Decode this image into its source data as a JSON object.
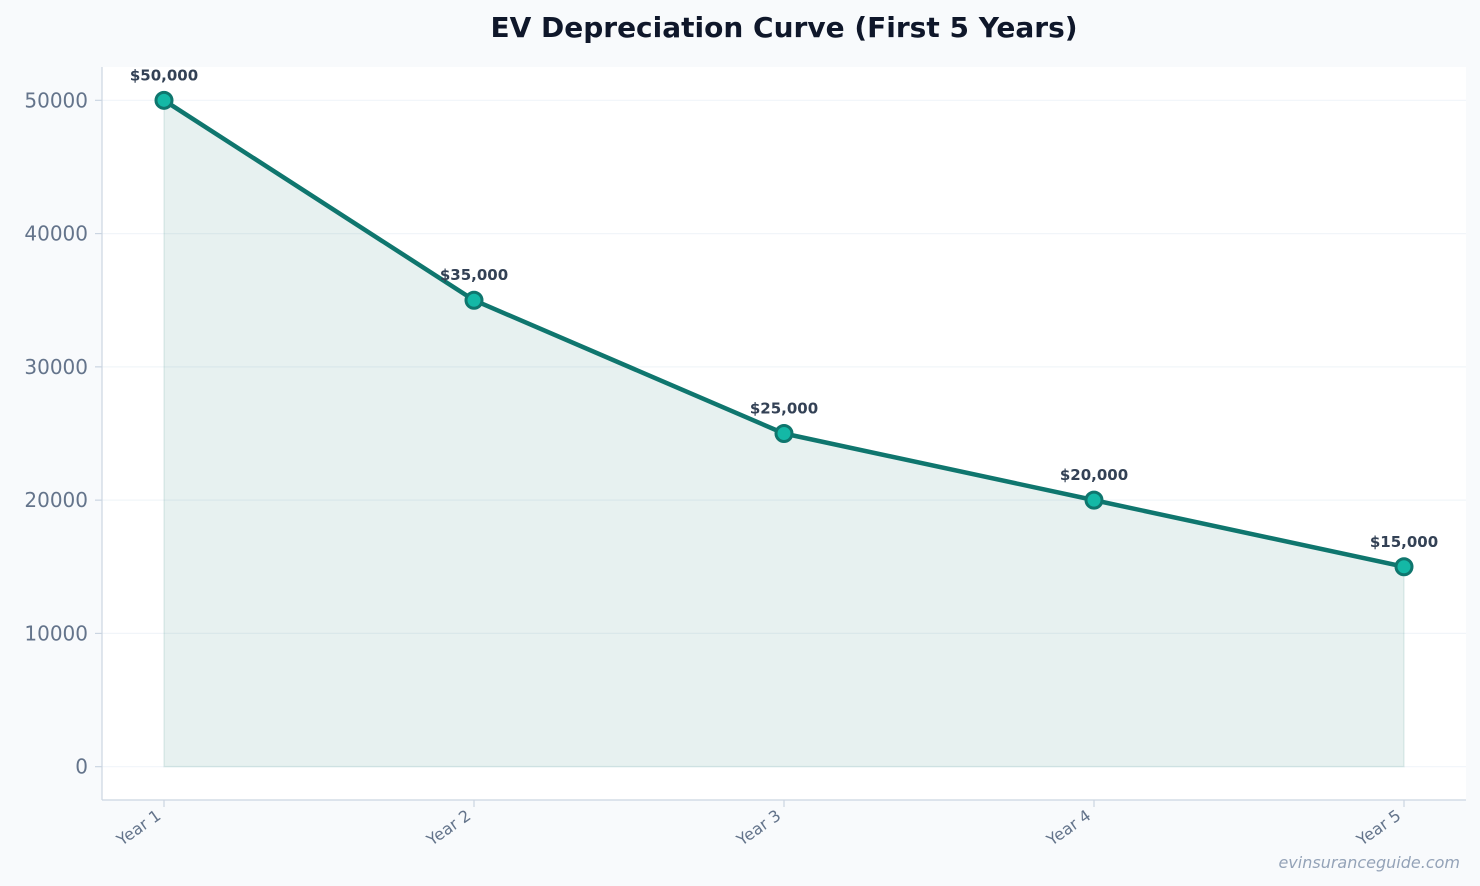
{
  "chart_data": {
    "type": "area",
    "title": "EV Depreciation Curve (First 5 Years)",
    "xlabel": "",
    "ylabel": "",
    "categories": [
      "Year 1",
      "Year 2",
      "Year 3",
      "Year 4",
      "Year 5"
    ],
    "series": [
      {
        "values": [
          50000,
          35000,
          25000,
          20000,
          15000
        ],
        "data_labels": [
          "$50,000",
          "$35,000",
          "$25,000",
          "$20,000",
          "$15,000"
        ]
      }
    ],
    "yticks": [
      0,
      10000,
      20000,
      30000,
      40000,
      50000
    ],
    "ylim": [
      -2500,
      52500
    ],
    "grid": true,
    "legend": "none"
  },
  "colors": {
    "line": "#0f766e",
    "marker_fill": "#14b8a6",
    "area_fill": "#0f766e",
    "background": "#f8fafc",
    "plot_background": "#ffffff"
  },
  "watermark": "evinsuranceguide.com"
}
